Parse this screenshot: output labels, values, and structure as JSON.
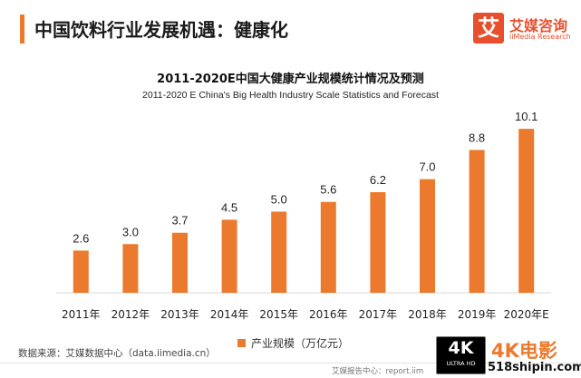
{
  "header": {
    "title": "中国饮料行业发展机遇：健康化"
  },
  "logo": {
    "mark": "艾",
    "name_cn": "艾媒咨询",
    "name_en": "iiMedia Research"
  },
  "chart_data": {
    "type": "bar",
    "title": "2011-2020E中国大健康产业规模统计情况及预测",
    "subtitle": "2011-2020 E China's Big Health Industry Scale Statistics and Forecast",
    "categories": [
      "2011年",
      "2012年",
      "2013年",
      "2014年",
      "2015年",
      "2016年",
      "2017年",
      "2018年",
      "2019年",
      "2020年E"
    ],
    "series": [
      {
        "name": "产业规模（万亿元）",
        "values": [
          2.6,
          3.0,
          3.7,
          4.5,
          5.0,
          5.6,
          6.2,
          7.0,
          8.8,
          10.1
        ],
        "color": "#ec7a2e"
      }
    ],
    "ylim": [
      0,
      11
    ],
    "data_labels": [
      "2.6",
      "3.0",
      "3.7",
      "4.5",
      "5.0",
      "5.6",
      "6.2",
      "7.0",
      "8.8",
      "10.1"
    ],
    "legend_position": "bottom",
    "grid": false
  },
  "source": {
    "text": "数据来源：艾媒数据中心（data.iimedia.cn）"
  },
  "footer": {
    "text": "艾媒报告中心：report.iim"
  },
  "watermark": {
    "badge_main": "4K",
    "badge_sub": "ULTRA HD",
    "title": "4K电影",
    "url": "518shipin.com"
  }
}
